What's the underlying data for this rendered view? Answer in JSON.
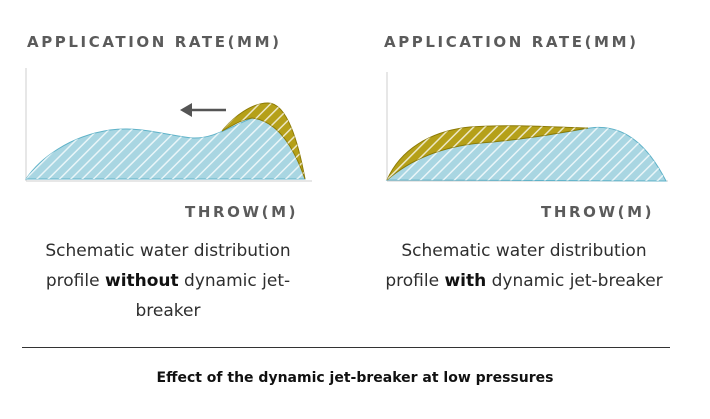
{
  "left_diagram": {
    "y_axis_label": "APPLICATION RATE(MM)",
    "x_axis_label": "THROW(M)",
    "caption": {
      "pre": "Schematic water distribution profile ",
      "bold": "without",
      "post": " dynamic jet-breaker"
    },
    "has_arrow": true
  },
  "right_diagram": {
    "y_axis_label": "APPLICATION RATE(MM)",
    "x_axis_label": "THROW(M)",
    "caption": {
      "pre": "Schematic water distribution profile ",
      "bold": "with",
      "post": " dynamic jet-breaker"
    }
  },
  "footer": "Effect of the dynamic jet-breaker at low pressures",
  "colors": {
    "blue_fill": "#a9d6e2",
    "blue_stroke": "#5fb2c8",
    "gold_fill": "#b5a019",
    "gold_stroke": "#8c7a05",
    "hatch": "#ffffff"
  }
}
